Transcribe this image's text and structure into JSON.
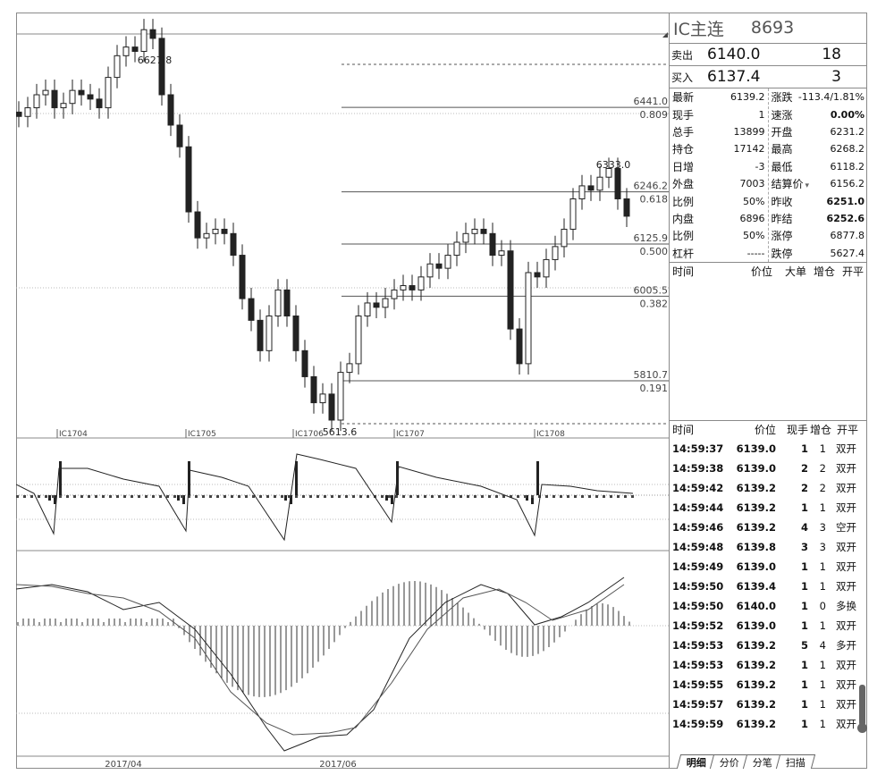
{
  "instrument": {
    "name": "IC主连",
    "code": "8693"
  },
  "orderbook": {
    "ask_label": "卖出",
    "ask_price": "6140.0",
    "ask_qty": "18",
    "bid_label": "买入",
    "bid_price": "6137.4",
    "bid_qty": "3"
  },
  "stats_left": [
    {
      "label": "最新",
      "value": "6139.2"
    },
    {
      "label": "现手",
      "value": "1"
    },
    {
      "label": "总手",
      "value": "13899"
    },
    {
      "label": "持仓",
      "value": "17142"
    },
    {
      "label": "日增",
      "value": "-3"
    },
    {
      "label": "外盘",
      "value": "7003"
    },
    {
      "label": "比例",
      "value": "50%"
    },
    {
      "label": "内盘",
      "value": "6896"
    },
    {
      "label": "比例",
      "value": "50%"
    },
    {
      "label": "杠杆",
      "value": "-----"
    }
  ],
  "stats_right": [
    {
      "label": "涨跌",
      "value": "-113.4/1.81%"
    },
    {
      "label": "速涨",
      "value": "0.00%"
    },
    {
      "label": "开盘",
      "value": "6231.2"
    },
    {
      "label": "最高",
      "value": "6268.2"
    },
    {
      "label": "最低",
      "value": "6118.2"
    },
    {
      "label": "结算价",
      "value": "6156.2"
    },
    {
      "label": "昨收",
      "value": "6251.0"
    },
    {
      "label": "昨结",
      "value": "6252.6"
    },
    {
      "label": "涨停",
      "value": "6877.8"
    },
    {
      "label": "跌停",
      "value": "5627.4"
    }
  ],
  "big_order_header": {
    "time": "时间",
    "price": "价位",
    "big": "大单",
    "oi": "增仓",
    "type": "开平"
  },
  "tick_header": {
    "time": "时间",
    "price": "价位",
    "qty": "现手",
    "oi": "增仓",
    "type": "开平"
  },
  "ticks": [
    [
      "14:59:37",
      "6139.0",
      "1",
      "1",
      "双开"
    ],
    [
      "14:59:38",
      "6139.0",
      "2",
      "2",
      "双开"
    ],
    [
      "14:59:42",
      "6139.2",
      "2",
      "2",
      "双开"
    ],
    [
      "14:59:44",
      "6139.2",
      "1",
      "1",
      "双开"
    ],
    [
      "14:59:46",
      "6139.2",
      "4",
      "3",
      "空开"
    ],
    [
      "14:59:48",
      "6139.8",
      "3",
      "3",
      "双开"
    ],
    [
      "14:59:49",
      "6139.0",
      "1",
      "1",
      "双开"
    ],
    [
      "14:59:50",
      "6139.4",
      "1",
      "1",
      "双开"
    ],
    [
      "14:59:50",
      "6140.0",
      "1",
      "0",
      "多换"
    ],
    [
      "14:59:52",
      "6139.0",
      "1",
      "1",
      "双开"
    ],
    [
      "14:59:53",
      "6139.2",
      "5",
      "4",
      "多开"
    ],
    [
      "14:59:53",
      "6139.2",
      "1",
      "1",
      "双开"
    ],
    [
      "14:59:55",
      "6139.2",
      "1",
      "1",
      "双开"
    ],
    [
      "14:59:57",
      "6139.2",
      "1",
      "1",
      "双开"
    ],
    [
      "14:59:59",
      "6139.2",
      "1",
      "1",
      "双开"
    ]
  ],
  "tabs": [
    "明细",
    "分价",
    "分笔",
    "扫描"
  ],
  "chart": {
    "high_label": "6627.8",
    "low_label": "5613.6",
    "local_high_label": "6333.0",
    "fib_levels": [
      {
        "price": "6441.0",
        "ratio": "0.809"
      },
      {
        "price": "6246.2",
        "ratio": "0.618"
      },
      {
        "price": "6125.9",
        "ratio": "0.500"
      },
      {
        "price": "6005.5",
        "ratio": "0.382"
      },
      {
        "price": "5810.7",
        "ratio": "0.191"
      }
    ],
    "contract_labels": [
      "IC1704",
      "IC1705",
      "IC1706",
      "IC1707",
      "IC1708"
    ],
    "date_labels": [
      "2017/04",
      "2017/06"
    ]
  }
}
